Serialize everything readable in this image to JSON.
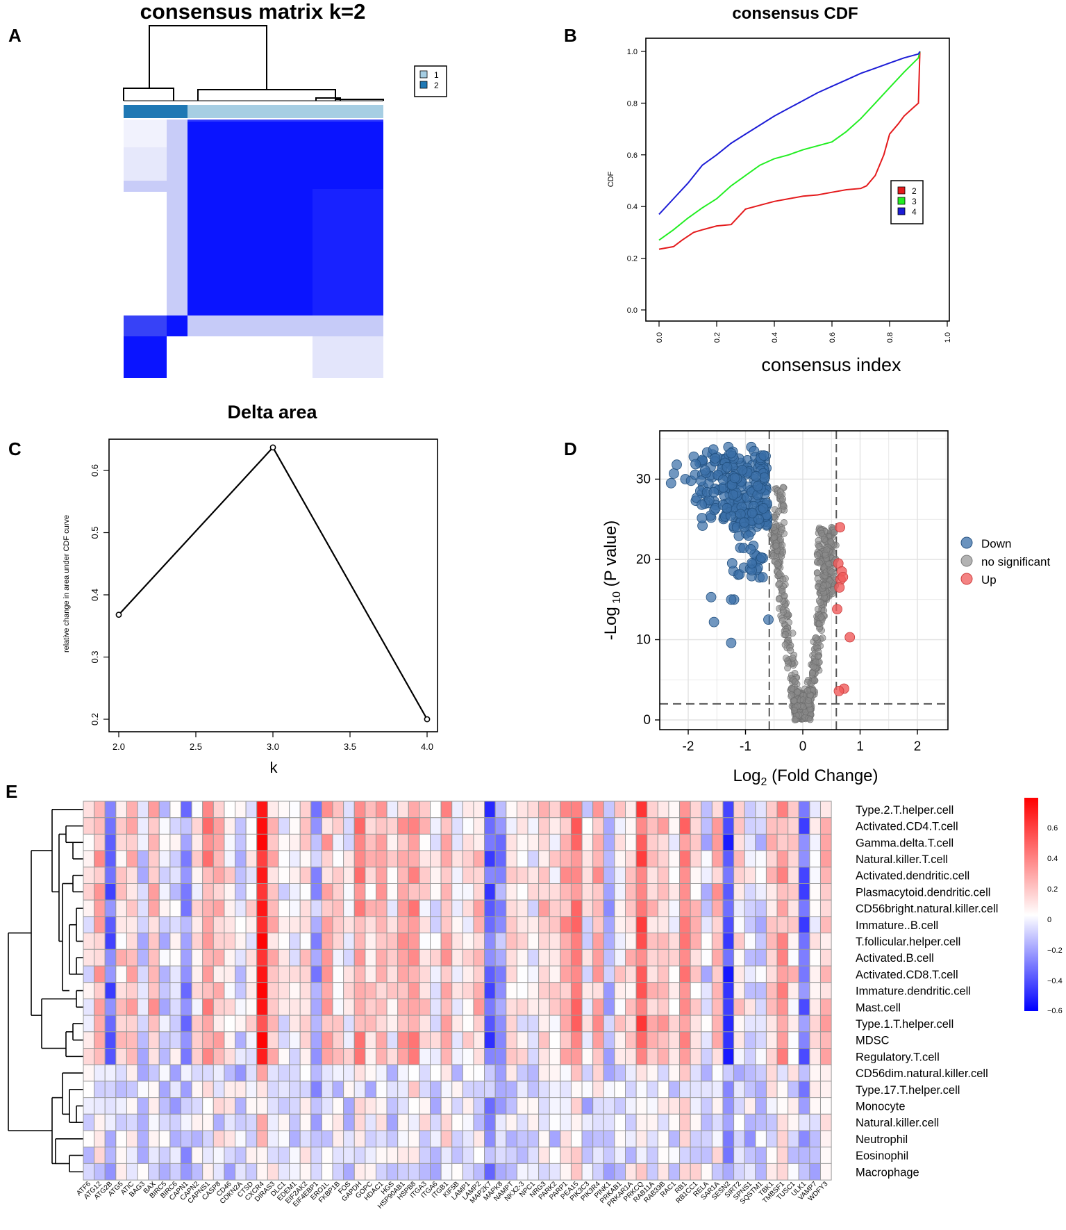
{
  "panels": {
    "A": "A",
    "B": "B",
    "C": "C",
    "D": "D",
    "E": "E"
  },
  "chart_data": [
    {
      "id": "A",
      "type": "heatmap",
      "title": "consensus matrix k=2",
      "legend": {
        "entries": [
          "1",
          "2"
        ],
        "colors": [
          "#a6cee3",
          "#1f78b4"
        ]
      },
      "colors": {
        "high": "#0a14ff",
        "low": "#ffffff",
        "mid": "#dfe2fb"
      }
    },
    {
      "id": "B",
      "type": "line",
      "title": "consensus CDF",
      "xlabel": "consensus index",
      "ylabel": "CDF",
      "xlim": [
        0,
        1
      ],
      "ylim": [
        0,
        1
      ],
      "x_ticks": [
        "0.0",
        "0.2",
        "0.4",
        "0.6",
        "0.8",
        "1.0"
      ],
      "y_ticks": [
        "0.0",
        "0.2",
        "0.4",
        "0.6",
        "0.8",
        "1.0"
      ],
      "legend_position": "right",
      "series": [
        {
          "name": "2",
          "color": "#e41a1c",
          "x": [
            0,
            0.05,
            0.08,
            0.12,
            0.15,
            0.2,
            0.25,
            0.3,
            0.35,
            0.4,
            0.45,
            0.5,
            0.55,
            0.6,
            0.65,
            0.7,
            0.72,
            0.75,
            0.78,
            0.8,
            0.83,
            0.85,
            0.88,
            0.9,
            0.905
          ],
          "y": [
            0.235,
            0.245,
            0.27,
            0.3,
            0.31,
            0.325,
            0.33,
            0.39,
            0.405,
            0.42,
            0.43,
            0.44,
            0.445,
            0.455,
            0.465,
            0.47,
            0.48,
            0.52,
            0.6,
            0.68,
            0.72,
            0.75,
            0.78,
            0.8,
            1.0
          ]
        },
        {
          "name": "3",
          "color": "#22ee22",
          "x": [
            0,
            0.05,
            0.1,
            0.15,
            0.2,
            0.25,
            0.3,
            0.35,
            0.4,
            0.45,
            0.5,
            0.55,
            0.6,
            0.65,
            0.7,
            0.75,
            0.8,
            0.85,
            0.9,
            0.905
          ],
          "y": [
            0.27,
            0.31,
            0.355,
            0.395,
            0.43,
            0.48,
            0.52,
            0.56,
            0.585,
            0.6,
            0.62,
            0.635,
            0.65,
            0.69,
            0.74,
            0.8,
            0.86,
            0.92,
            0.975,
            1.0
          ]
        },
        {
          "name": "4",
          "color": "#1c1cd6",
          "x": [
            0,
            0.05,
            0.1,
            0.15,
            0.2,
            0.25,
            0.3,
            0.35,
            0.4,
            0.45,
            0.5,
            0.55,
            0.6,
            0.65,
            0.7,
            0.75,
            0.8,
            0.85,
            0.9,
            0.905
          ],
          "y": [
            0.37,
            0.43,
            0.49,
            0.56,
            0.6,
            0.645,
            0.68,
            0.715,
            0.75,
            0.78,
            0.81,
            0.84,
            0.865,
            0.89,
            0.915,
            0.935,
            0.955,
            0.975,
            0.99,
            1.0
          ]
        }
      ]
    },
    {
      "id": "C",
      "type": "line",
      "title": "Delta area",
      "xlabel": "k",
      "ylabel": "relative change in area under CDF curve",
      "xlim": [
        1.9,
        4.1
      ],
      "ylim": [
        0.185,
        0.65
      ],
      "x_ticks": [
        "2.0",
        "2.5",
        "3.0",
        "3.5",
        "4.0"
      ],
      "y_ticks": [
        "0.2",
        "0.3",
        "0.4",
        "0.5",
        "0.6"
      ],
      "x": [
        2,
        3,
        4
      ],
      "y": [
        0.368,
        0.637,
        0.2
      ]
    },
    {
      "id": "D",
      "type": "scatter",
      "xlabel": "Log2 (Fold Change)",
      "ylabel": "-Log 10 (P value)",
      "xlim": [
        -2.5,
        2.5
      ],
      "ylim": [
        -1,
        36
      ],
      "x_ticks": [
        "-2",
        "-1",
        "0",
        "1",
        "2"
      ],
      "y_ticks": [
        "0",
        "10",
        "20",
        "30"
      ],
      "thresholds": {
        "fold_change": [
          -0.585,
          0.585
        ],
        "p": 2
      },
      "legend": [
        {
          "label": "Down",
          "color": "#3a6fa8"
        },
        {
          "label": "no significant",
          "color": "#9a9a9a"
        },
        {
          "label": "Up",
          "color": "#f05a5a"
        }
      ],
      "up_points": [
        [
          0.65,
          24
        ],
        [
          0.62,
          19.5
        ],
        [
          0.68,
          18.5
        ],
        [
          0.66,
          17.5
        ],
        [
          0.7,
          17.8
        ],
        [
          0.64,
          16.5
        ],
        [
          0.6,
          13.8
        ],
        [
          0.82,
          10.3
        ],
        [
          0.72,
          3.9
        ],
        [
          0.63,
          3.6
        ]
      ],
      "down_points": [
        [
          -1.25,
          9.6
        ],
        [
          -1.55,
          12.2
        ],
        [
          -1.6,
          15.3
        ],
        [
          -1.2,
          15
        ],
        [
          -1.25,
          15
        ],
        [
          -0.6,
          12.5
        ],
        [
          -1.6,
          25.2
        ],
        [
          -1.75,
          24.2
        ],
        [
          -2.3,
          29.5
        ],
        [
          -2.25,
          30.7
        ],
        [
          -2.2,
          31.8
        ],
        [
          -2.05,
          30
        ],
        [
          -1.95,
          29.8
        ],
        [
          -1.3,
          34
        ],
        [
          -0.9,
          34
        ],
        [
          -0.85,
          33.5
        ]
      ]
    },
    {
      "id": "E",
      "type": "heatmap",
      "genes": [
        "ATF6",
        "ATG12",
        "ATG2B",
        "ATG5",
        "ATIC",
        "BAG3",
        "BAX",
        "BIRC5",
        "BIRC6",
        "CAPN1",
        "CAPN2",
        "CAPNS1",
        "CASP8",
        "CD46",
        "CDKN2A",
        "CTSD",
        "CXCR4",
        "DIRAS3",
        "DLC1",
        "EDEM1",
        "EIF2AK2",
        "EIF4EBP1",
        "ERO1L",
        "FKBP1B",
        "FOS",
        "GAPDH",
        "GOPC",
        "HDAC1",
        "HGS",
        "HSP90AB1",
        "HSPB8",
        "ITGA3",
        "ITGA6",
        "ITGB1",
        "KIF5B",
        "LAMP1",
        "LAMP2",
        "MAP2K7",
        "MAPK8",
        "NAMPT",
        "NKX2-3",
        "NPC1",
        "NRG3",
        "PARK2",
        "PARP1",
        "PEA15",
        "PIK3C3",
        "PIK3R4",
        "PINK1",
        "PRKAB1",
        "PRKAR1A",
        "PRKCQ",
        "RAB11A",
        "RAB33B",
        "RAC1",
        "RB1",
        "RB1CC1",
        "RELA",
        "SAR1A",
        "SESN2",
        "SIRT2",
        "SPNS1",
        "SQSTM1",
        "TBK1",
        "TMBSF1",
        "TUSC1",
        "ULK1",
        "VAMP7",
        "WDFY3"
      ],
      "cells": [
        "Type.2.T.helper.cell",
        "Activated.CD4.T.cell",
        "Gamma.delta.T.cell",
        "Natural.killer.T.cell",
        "Activated.dendritic.cell",
        "Plasmacytoid.dendritic.cell",
        "CD56bright.natural.killer.cell",
        "Immature..B.cell",
        "T.follicular.helper.cell",
        "Activated.B.cell",
        "Activated.CD8.T.cell",
        "Immature.dendritic.cell",
        "Mast.cell",
        "Type.1.T.helper.cell",
        "MDSC",
        "Regulatory.T.cell",
        "CD56dim.natural.killer.cell",
        "Type.17.T.helper.cell",
        "Monocyte",
        "Natural.killer.cell",
        "Neutrophil",
        "Eosinophil",
        "Macrophage"
      ],
      "scale_ticks": [
        "0.6",
        "0.4",
        "0.2",
        "0",
        "−0.2",
        "−0.4",
        "−0.6"
      ],
      "range": [
        -0.65,
        0.78
      ],
      "gene_bias": {
        "ATG2B": -0.45,
        "CAPN1": -0.35,
        "CXCR4": 0.55,
        "EIF4EBP1": -0.3,
        "MAP2K7": -0.5,
        "MAPK8": -0.35,
        "PEA15": 0.35,
        "PINK1": -0.25,
        "PRKCQ": 0.4,
        "RB1": 0.3,
        "SESN2": -0.55,
        "ULK1": -0.45,
        "RELA": -0.2,
        "CAPNS1": 0.25,
        "GAPDH": 0.25
      }
    }
  ]
}
